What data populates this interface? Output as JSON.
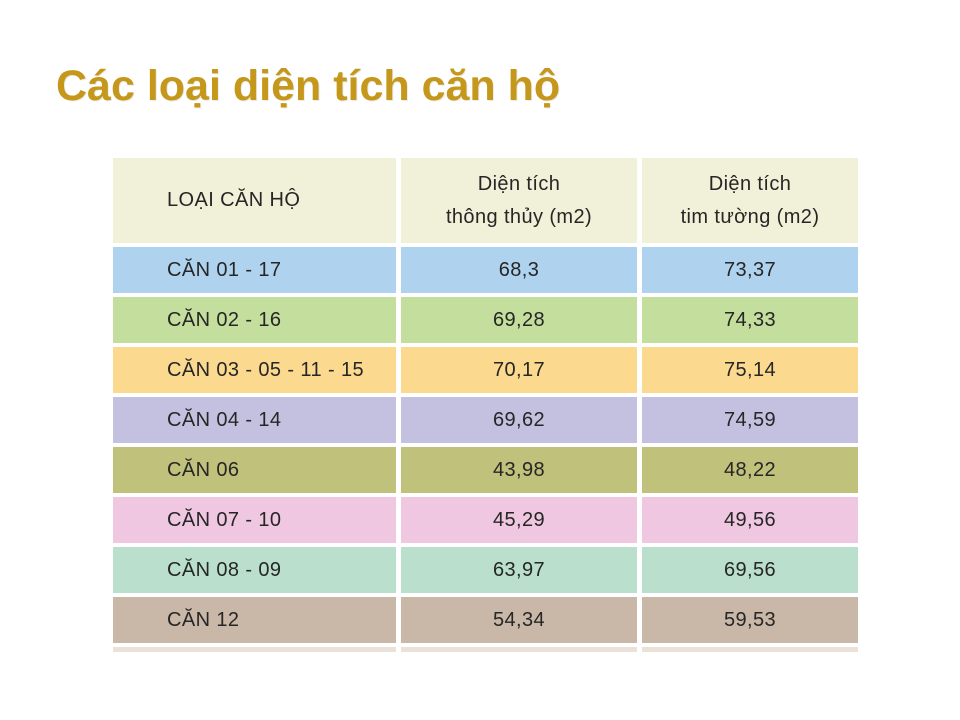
{
  "title": {
    "text": "Các loại diện tích căn hộ",
    "color": "#C5981C"
  },
  "table": {
    "header": {
      "bg": "#F0F1D8",
      "col1": "LOẠI CĂN HỘ",
      "col2": [
        "Diện tích",
        "thông thủy (m2)"
      ],
      "col3": [
        "Diện tích",
        "tim tường (m2)"
      ]
    },
    "rows": [
      {
        "label": "CĂN 01 - 17",
        "thong_thuy": "68,3",
        "tim_tuong": "73,37",
        "bg": "#AFD3EE"
      },
      {
        "label": "CĂN 02 - 16",
        "thong_thuy": "69,28",
        "tim_tuong": "74,33",
        "bg": "#C4DE9D"
      },
      {
        "label": "CĂN 03 - 05 - 11 - 15",
        "thong_thuy": "70,17",
        "tim_tuong": "75,14",
        "bg": "#FBD98E"
      },
      {
        "label": "CĂN 04 - 14",
        "thong_thuy": "69,62",
        "tim_tuong": "74,59",
        "bg": "#C4C1E0"
      },
      {
        "label": "CĂN 06",
        "thong_thuy": "43,98",
        "tim_tuong": "48,22",
        "bg": "#C0C17B"
      },
      {
        "label": "CĂN 07 - 10",
        "thong_thuy": "45,29",
        "tim_tuong": "49,56",
        "bg": "#EFC7E0"
      },
      {
        "label": "CĂN 08 - 09",
        "thong_thuy": "63,97",
        "tim_tuong": "69,56",
        "bg": "#BAE0CD"
      },
      {
        "label": "CĂN 12",
        "thong_thuy": "54,34",
        "tim_tuong": "59,53",
        "bg": "#C9B7A7"
      }
    ],
    "footer_strip_color": "#EAE2D8"
  }
}
